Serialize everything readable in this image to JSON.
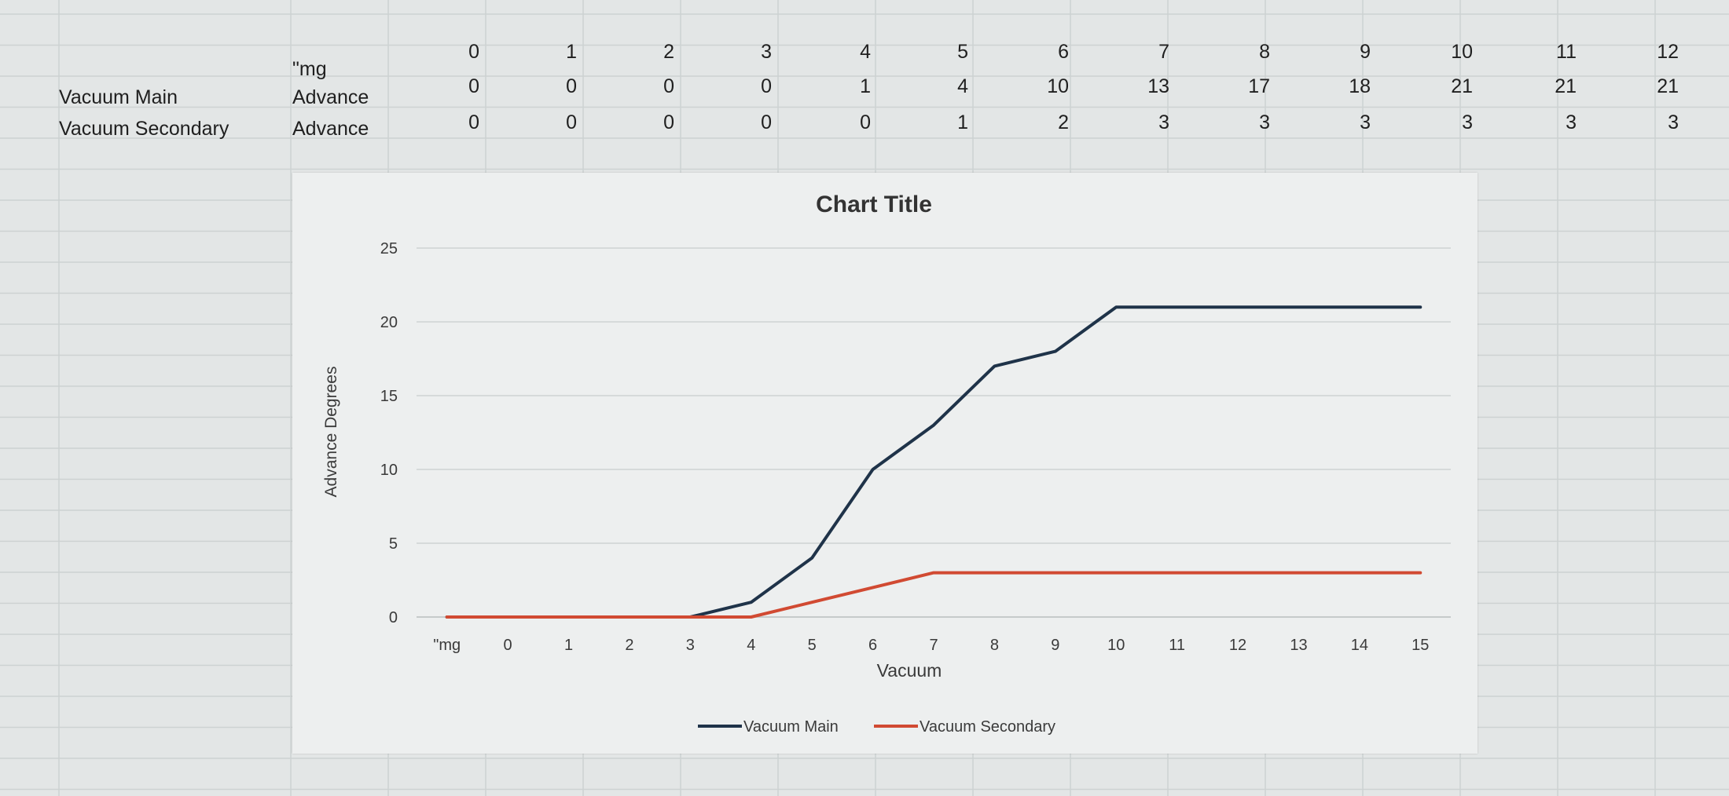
{
  "sheet": {
    "header_row": {
      "label": "\"mg",
      "values": [
        "0",
        "1",
        "2",
        "3",
        "4",
        "5",
        "6",
        "7",
        "8",
        "9",
        "10",
        "11",
        "12"
      ]
    },
    "rows": [
      {
        "name": "Vacuum Main",
        "label": "Advance",
        "values": [
          "0",
          "0",
          "0",
          "0",
          "1",
          "4",
          "10",
          "13",
          "17",
          "18",
          "21",
          "21",
          "21"
        ]
      },
      {
        "name": "Vacuum Secondary",
        "label": "Advance",
        "values": [
          "0",
          "0",
          "0",
          "0",
          "0",
          "1",
          "2",
          "3",
          "3",
          "3",
          "3",
          "3",
          "3"
        ]
      }
    ]
  },
  "chart_data": {
    "type": "line",
    "title": "Chart Title",
    "xlabel": "Vacuum",
    "ylabel": "Advance Degrees",
    "categories": [
      "\"mg",
      "0",
      "1",
      "2",
      "3",
      "4",
      "5",
      "6",
      "7",
      "8",
      "9",
      "10",
      "11",
      "12",
      "13",
      "14",
      "15"
    ],
    "series": [
      {
        "name": "Vacuum Main",
        "color": "#1f3349",
        "values": [
          0,
          0,
          0,
          0,
          0,
          1,
          4,
          10,
          13,
          17,
          18,
          21,
          21,
          21,
          21,
          21,
          21
        ]
      },
      {
        "name": "Vacuum Secondary",
        "color": "#d14a32",
        "values": [
          0,
          0,
          0,
          0,
          0,
          0,
          1,
          2,
          3,
          3,
          3,
          3,
          3,
          3,
          3,
          3,
          3
        ]
      }
    ],
    "ylim": [
      0,
      25
    ],
    "yticks": [
      "0",
      "5",
      "10",
      "15",
      "20",
      "25"
    ],
    "grid": true,
    "legend": "bottom"
  }
}
